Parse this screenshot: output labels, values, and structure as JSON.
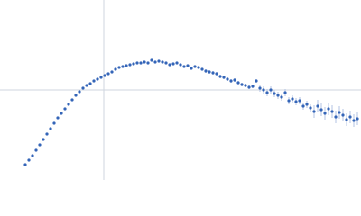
{
  "chart_data": {
    "type": "scatter",
    "x": [
      -0.87,
      -0.83,
      -0.79,
      -0.75,
      -0.71,
      -0.67,
      -0.63,
      -0.59,
      -0.55,
      -0.51,
      -0.47,
      -0.43,
      -0.39,
      -0.35,
      -0.31,
      -0.27,
      -0.23,
      -0.19,
      -0.15,
      -0.11,
      -0.07,
      -0.03,
      0.01,
      0.05,
      0.09,
      0.13,
      0.17,
      0.21,
      0.25,
      0.29,
      0.33,
      0.37,
      0.41,
      0.45,
      0.49,
      0.53,
      0.57,
      0.61,
      0.65,
      0.69,
      0.73,
      0.77,
      0.81,
      0.85,
      0.89,
      0.93,
      0.97,
      1.01,
      1.05,
      1.09,
      1.13,
      1.17,
      1.21,
      1.25,
      1.29,
      1.33,
      1.37,
      1.41,
      1.45,
      1.49,
      1.53,
      1.57,
      1.61,
      1.65,
      1.69,
      1.73,
      1.77,
      1.81,
      1.85,
      1.89,
      1.93,
      1.97,
      2.01,
      2.05,
      2.09,
      2.13,
      2.17,
      2.21,
      2.25,
      2.29,
      2.33,
      2.37,
      2.41,
      2.45,
      2.49,
      2.53,
      2.57,
      2.61,
      2.65,
      2.69,
      2.73,
      2.77,
      2.81
    ],
    "series": [
      {
        "color": "#3465b8",
        "error_color": "#b3c3e3",
        "values": [
          -0.83,
          -0.78,
          -0.73,
          -0.67,
          -0.61,
          -0.55,
          -0.49,
          -0.43,
          -0.37,
          -0.31,
          -0.26,
          -0.21,
          -0.16,
          -0.11,
          -0.06,
          -0.02,
          0.02,
          0.05,
          0.07,
          0.1,
          0.12,
          0.14,
          0.16,
          0.18,
          0.2,
          0.23,
          0.25,
          0.26,
          0.27,
          0.28,
          0.29,
          0.3,
          0.3,
          0.31,
          0.3,
          0.33,
          0.31,
          0.32,
          0.31,
          0.3,
          0.28,
          0.29,
          0.3,
          0.28,
          0.26,
          0.27,
          0.24,
          0.26,
          0.25,
          0.23,
          0.21,
          0.2,
          0.19,
          0.18,
          0.15,
          0.14,
          0.12,
          0.1,
          0.11,
          0.08,
          0.06,
          0.05,
          0.03,
          0.04,
          0.1,
          0.02,
          0,
          -0.03,
          0,
          -0.04,
          -0.06,
          -0.08,
          -0.03,
          -0.12,
          -0.1,
          -0.13,
          -0.12,
          -0.18,
          -0.16,
          -0.2,
          -0.24,
          -0.18,
          -0.22,
          -0.26,
          -0.21,
          -0.24,
          -0.3,
          -0.25,
          -0.28,
          -0.33,
          -0.3,
          -0.34,
          -0.32
        ],
        "errors": [
          0.005,
          0.005,
          0.005,
          0.005,
          0.005,
          0.005,
          0.005,
          0.005,
          0.005,
          0.005,
          0.005,
          0.005,
          0.005,
          0.005,
          0.005,
          0.005,
          0.005,
          0.005,
          0.005,
          0.005,
          0.005,
          0.005,
          0.005,
          0.005,
          0.005,
          0.005,
          0.005,
          0.005,
          0.005,
          0.005,
          0.01,
          0.01,
          0.01,
          0.01,
          0.01,
          0.01,
          0.01,
          0.01,
          0.01,
          0.01,
          0.01,
          0.01,
          0.01,
          0.01,
          0.01,
          0.01,
          0.01,
          0.01,
          0.01,
          0.01,
          0.02,
          0.02,
          0.02,
          0.02,
          0.02,
          0.02,
          0.02,
          0.02,
          0.02,
          0.02,
          0.02,
          0.02,
          0.02,
          0.02,
          0.02,
          0.04,
          0.04,
          0.04,
          0.04,
          0.04,
          0.04,
          0.04,
          0.04,
          0.04,
          0.04,
          0.04,
          0.04,
          0.04,
          0.04,
          0.04,
          0.07,
          0.07,
          0.07,
          0.07,
          0.07,
          0.07,
          0.07,
          0.07,
          0.07,
          0.07,
          0.07,
          0.07,
          0.07
        ]
      }
    ],
    "xlim": [
      -1.15,
      2.85
    ],
    "ylim": [
      -1,
      1
    ],
    "axis_color": "#cfd6df"
  }
}
